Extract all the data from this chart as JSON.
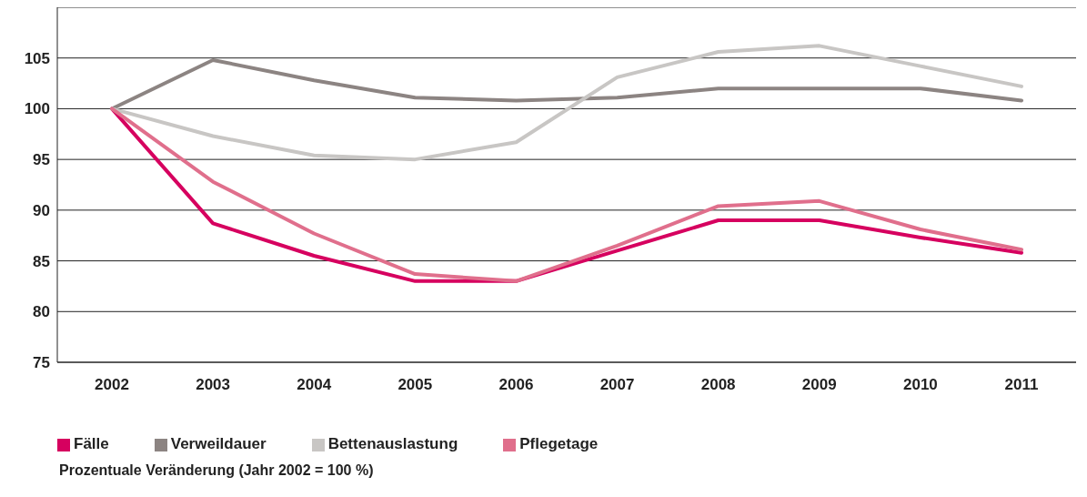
{
  "chart_data": {
    "type": "line",
    "categories": [
      "2002",
      "2003",
      "2004",
      "2005",
      "2006",
      "2007",
      "2008",
      "2009",
      "2010",
      "2011"
    ],
    "series": [
      {
        "name": "Fälle",
        "color": "#d6005f",
        "values": [
          100,
          88.7,
          85.5,
          83.0,
          83.0,
          86.0,
          89.0,
          89.0,
          87.3,
          85.8
        ]
      },
      {
        "name": "Verweildauer",
        "color": "#8c8482",
        "values": [
          100,
          104.8,
          102.8,
          101.1,
          100.8,
          101.1,
          102.0,
          102.0,
          102.0,
          100.8
        ]
      },
      {
        "name": "Bettenauslastung",
        "color": "#c8c6c4",
        "values": [
          100,
          97.3,
          95.4,
          95.0,
          96.7,
          103.1,
          105.6,
          106.2,
          104.2,
          102.2
        ]
      },
      {
        "name": "Pflegetage",
        "color": "#e06f8c",
        "values": [
          100,
          92.8,
          87.7,
          83.7,
          83.0,
          86.5,
          90.4,
          90.9,
          88.1,
          86.1
        ]
      }
    ],
    "ylim": [
      75,
      110
    ],
    "yticks": [
      75,
      80,
      85,
      90,
      95,
      100,
      105
    ],
    "grid": "y",
    "legend": "bottom",
    "marker": "none",
    "line_style": "solid",
    "annotations": [
      "Prozentuale Veränderung (Jahr 2002 = 100 %)"
    ]
  }
}
